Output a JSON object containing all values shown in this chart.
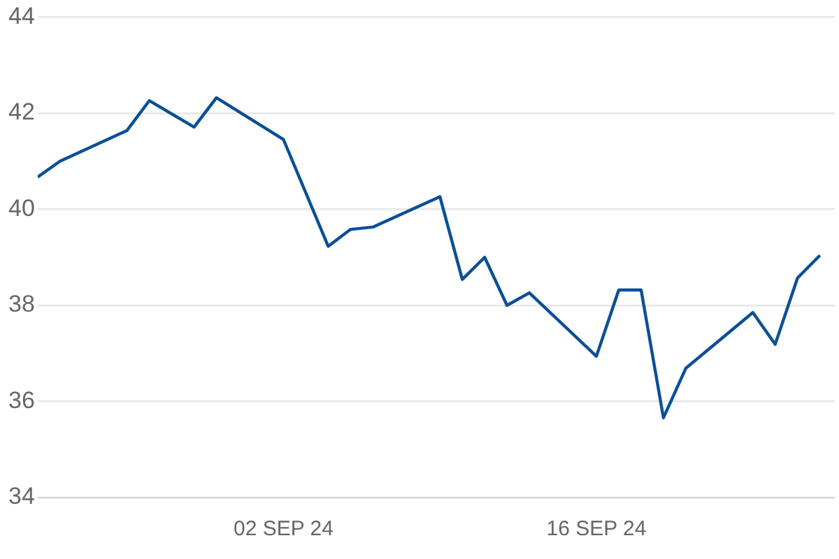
{
  "chart_data": {
    "type": "line",
    "x": [
      "--08-22",
      "--08-23",
      "--08-26",
      "--08-27",
      "--08-29",
      "--08-30",
      "--09-02",
      "--09-04",
      "--09-05",
      "--09-06",
      "--09-09",
      "--09-10",
      "--09-11",
      "--09-12",
      "--09-13",
      "--09-16",
      "--09-17",
      "--09-18",
      "--09-19",
      "--09-20",
      "--09-23",
      "--09-24",
      "--09-25",
      "--09-26"
    ],
    "series": [
      {
        "color": "#0b4f96",
        "values": [
          40.67,
          41.0,
          41.64,
          42.26,
          41.71,
          42.32,
          41.45,
          39.23,
          39.58,
          39.63,
          40.26,
          38.54,
          39.0,
          38.0,
          38.26,
          36.94,
          38.32,
          38.32,
          35.66,
          36.69,
          37.85,
          37.19,
          38.57,
          39.04
        ]
      }
    ],
    "xlim": [
      "--08-22",
      "--09-26T16:00"
    ],
    "xticks": [
      {
        "value": "--09-02",
        "label": "02 SEP 24"
      },
      {
        "value": "--09-16",
        "label": "16 SEP 24"
      }
    ],
    "ylim": [
      34,
      44
    ],
    "yticks": [
      34,
      36,
      38,
      40,
      42,
      44
    ],
    "grid": "y",
    "legend": false,
    "marker": "none",
    "line_style": "solid"
  }
}
